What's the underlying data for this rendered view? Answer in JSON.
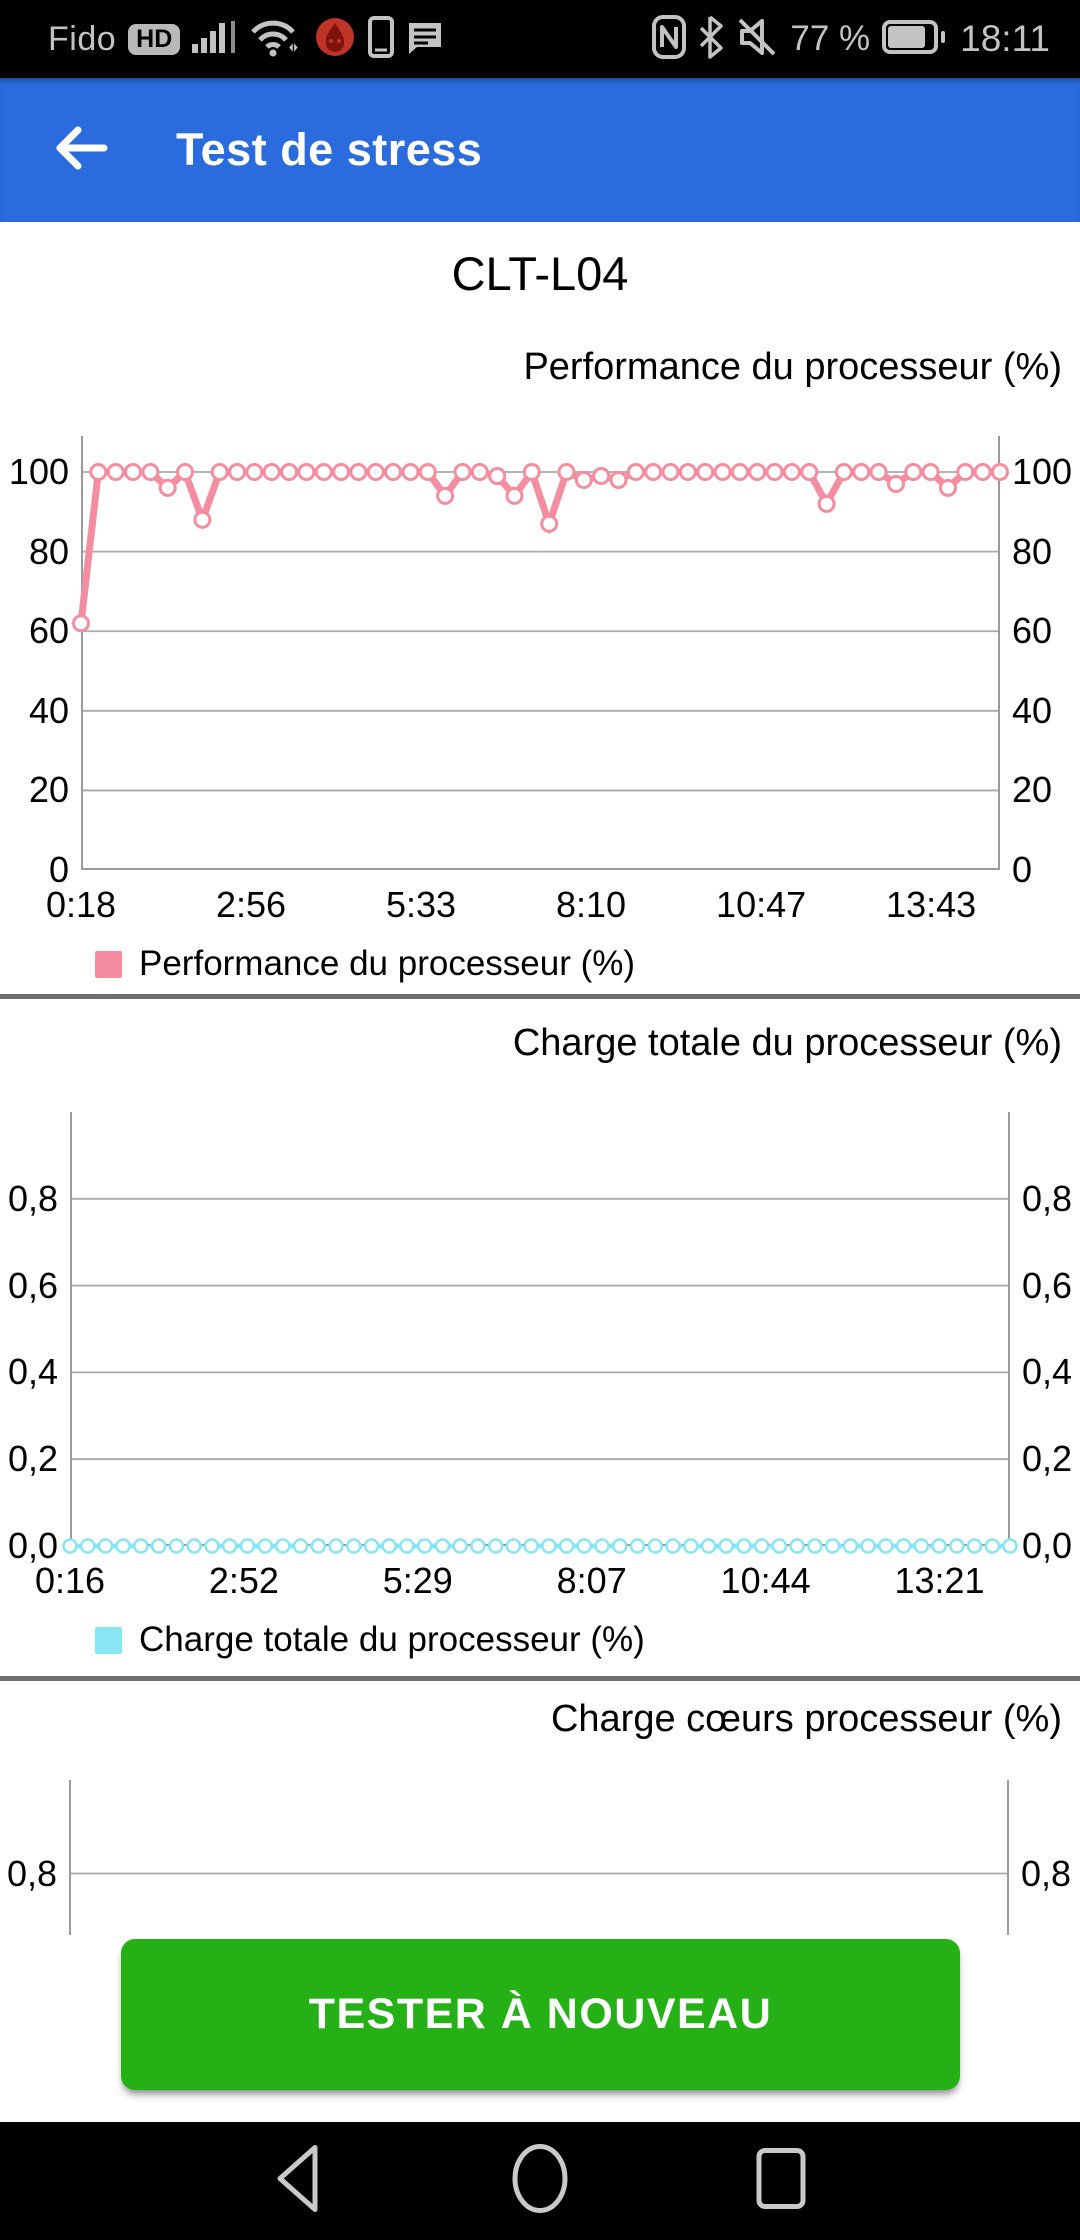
{
  "status_bar": {
    "carrier": "Fido",
    "hd_badge": "HD",
    "battery_level": "77 %",
    "time": "18:11",
    "left_icons": [
      "signal-strength-icon",
      "wifi-icon",
      "antutu-flame-icon",
      "phone-icon",
      "sms-icon"
    ],
    "right_icons": [
      "nfc-icon",
      "bluetooth-icon",
      "mute-icon",
      "battery-icon"
    ]
  },
  "app_bar": {
    "title": "Test de stress",
    "background": "#2a6bdd",
    "back_icon": "arrow-left"
  },
  "device_model": "CLT-L04",
  "chart_data": [
    {
      "type": "line",
      "title": "Performance du processeur (%)",
      "legend": "Performance du processeur (%)",
      "legend_position": "bottom-left",
      "grid": true,
      "x_tick_labels": [
        "0:18",
        "2:56",
        "5:33",
        "8:10",
        "10:47",
        "13:43"
      ],
      "y_ticks": [
        0,
        20,
        40,
        60,
        80,
        100
      ],
      "y_tick_labels": [
        "0",
        "20",
        "40",
        "60",
        "80",
        "100"
      ],
      "ylim": [
        0,
        109
      ],
      "series": [
        {
          "name": "Performance du processeur (%)",
          "color": "#f48da0",
          "values": [
            62,
            100,
            100,
            100,
            100,
            96,
            100,
            88,
            100,
            100,
            100,
            100,
            100,
            100,
            100,
            100,
            100,
            100,
            100,
            100,
            100,
            94,
            100,
            100,
            99,
            94,
            100,
            87,
            100,
            98,
            99,
            98,
            100,
            100,
            100,
            100,
            100,
            100,
            100,
            100,
            100,
            100,
            100,
            92,
            100,
            100,
            100,
            97,
            100,
            100,
            96,
            100,
            100,
            100
          ]
        }
      ]
    },
    {
      "type": "line",
      "title": "Charge totale du processeur (%)",
      "legend": "Charge totale du processeur (%)",
      "legend_position": "bottom-left",
      "grid": true,
      "x_tick_labels": [
        "0:16",
        "2:52",
        "5:29",
        "8:07",
        "10:44",
        "13:21"
      ],
      "y_ticks": [
        0,
        0.2,
        0.4,
        0.6,
        0.8
      ],
      "y_tick_labels": [
        "0,0",
        "0,2",
        "0,4",
        "0,6",
        "0,8"
      ],
      "ylim": [
        0,
        1
      ],
      "series": [
        {
          "name": "Charge totale du processeur (%)",
          "color": "#87e6f2",
          "values": [
            0,
            0,
            0,
            0,
            0,
            0,
            0,
            0,
            0,
            0,
            0,
            0,
            0,
            0,
            0,
            0,
            0,
            0,
            0,
            0,
            0,
            0,
            0,
            0,
            0,
            0,
            0,
            0,
            0,
            0,
            0,
            0,
            0,
            0,
            0,
            0,
            0,
            0,
            0,
            0,
            0,
            0,
            0,
            0,
            0,
            0,
            0,
            0,
            0,
            0,
            0,
            0,
            0,
            0
          ]
        }
      ]
    },
    {
      "type": "line",
      "title": "Charge cœurs processeur (%)",
      "grid": true,
      "y_ticks": [
        0.8
      ],
      "y_tick_labels": [
        "0,8"
      ],
      "ylim": [
        0,
        1
      ]
    }
  ],
  "retest_button": {
    "label": "TESTER À NOUVEAU",
    "color": "#25b115"
  },
  "nav_bar": {
    "icons": [
      "back-icon",
      "home-icon",
      "recents-icon"
    ]
  }
}
